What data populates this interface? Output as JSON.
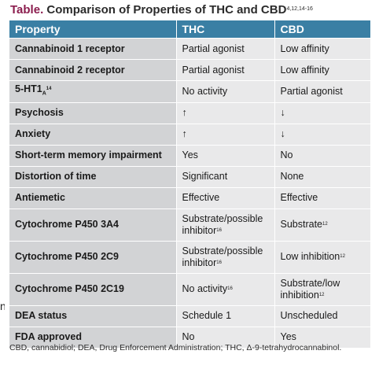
{
  "title": {
    "label": "Table.",
    "text": "Comparison of Properties of THC and CBD",
    "refs": "4,12,14-16"
  },
  "stray_text": "n",
  "table": {
    "headers": [
      "Property",
      "THC",
      "CBD"
    ],
    "rows": [
      {
        "property": "Cannabinoid 1 receptor",
        "property_sup": "",
        "thc": "Partial agonist",
        "thc_sup": "",
        "cbd": "Low affinity",
        "cbd_sup": ""
      },
      {
        "property": "Cannabinoid 2 receptor",
        "property_sup": "",
        "thc": "Partial agonist",
        "thc_sup": "",
        "cbd": "Low affinity",
        "cbd_sup": ""
      },
      {
        "property": "5-HT1",
        "property_sub": "A",
        "property_sup": "14",
        "thc": "No activity",
        "thc_sup": "",
        "cbd": "Partial agonist",
        "cbd_sup": ""
      },
      {
        "property": "Psychosis",
        "property_sup": "",
        "thc": "↑",
        "thc_sup": "",
        "cbd": "↓",
        "cbd_sup": ""
      },
      {
        "property": "Anxiety",
        "property_sup": "",
        "thc": "↑",
        "thc_sup": "",
        "cbd": "↓",
        "cbd_sup": ""
      },
      {
        "property": "Short-term memory impairment",
        "property_sup": "",
        "thc": "Yes",
        "thc_sup": "",
        "cbd": "No",
        "cbd_sup": ""
      },
      {
        "property": "Distortion of time",
        "property_sup": "",
        "thc": "Significant",
        "thc_sup": "",
        "cbd": "None",
        "cbd_sup": ""
      },
      {
        "property": "Antiemetic",
        "property_sup": "",
        "thc": "Effective",
        "thc_sup": "",
        "cbd": "Effective",
        "cbd_sup": ""
      },
      {
        "property": "Cytochrome P450 3A4",
        "property_sup": "",
        "thc": "Substrate/possible inhibitor",
        "thc_sup": "16",
        "cbd": "Substrate",
        "cbd_sup": "12"
      },
      {
        "property": "Cytochrome P450 2C9",
        "property_sup": "",
        "thc": "Substrate/possible inhibitor",
        "thc_sup": "16",
        "cbd": "Low inhibition",
        "cbd_sup": "12"
      },
      {
        "property": "Cytochrome P450 2C19",
        "property_sup": "",
        "thc": "No activity",
        "thc_sup": "16",
        "cbd": "Substrate/low inhibition",
        "cbd_sup": "12"
      },
      {
        "property": "DEA status",
        "property_sup": "",
        "thc": "Schedule 1",
        "thc_sup": "",
        "cbd": "Unscheduled",
        "cbd_sup": ""
      },
      {
        "property": "FDA approved",
        "property_sup": "",
        "thc": "No",
        "thc_sup": "",
        "cbd": "Yes",
        "cbd_sup": ""
      }
    ]
  },
  "footnote": "CBD, cannabidiol; DEA, Drug Enforcement Administration; THC, Δ-9-tetrahydrocannabinol.",
  "colors": {
    "header_bg": "#3a7fa4",
    "title_label": "#8b1d4e",
    "property_cell": "#d2d3d5",
    "value_cell": "#e9e9ea"
  }
}
